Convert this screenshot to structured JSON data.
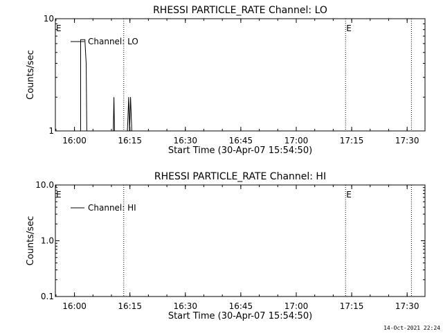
{
  "footer": {
    "timestamp": "14-Oct-2021 22:24"
  },
  "chart_data": [
    {
      "type": "line",
      "title": "RHESSI PARTICLE_RATE Channel: LO",
      "xlabel": "Start Time (30-Apr-07 15:54:50)",
      "ylabel": "Counts/sec",
      "y_scale": "log",
      "ylim": [
        1,
        10
      ],
      "y_ticks": [
        "10",
        "1"
      ],
      "x_ticks": [
        "16:00",
        "16:15",
        "16:30",
        "16:45",
        "17:00",
        "17:15",
        "17:30"
      ],
      "xlim": [
        "15:54:50",
        "17:34:50"
      ],
      "legend": "Channel: LO",
      "legend_position": "top-left",
      "markers": [
        {
          "label": "E",
          "time": "15:54:50",
          "style": "text"
        },
        {
          "label": "",
          "time": "16:13:20",
          "style": "dotted"
        },
        {
          "label": "E",
          "time": "17:13:20",
          "style": "dotted"
        },
        {
          "label": "",
          "time": "17:31:10",
          "style": "dotted"
        }
      ],
      "series": [
        {
          "name": "Channel: LO",
          "points": [
            [
              "16:01:40",
              1.0
            ],
            [
              "16:01:40",
              6.5
            ],
            [
              "16:02:50",
              6.5
            ],
            [
              "16:03:00",
              5.0
            ],
            [
              "16:03:10",
              4.0
            ],
            [
              "16:03:20",
              1.0
            ],
            [
              "16:10:30",
              1.0
            ],
            [
              "16:10:40",
              2.0
            ],
            [
              "16:10:50",
              1.0
            ],
            [
              "16:14:20",
              1.0
            ],
            [
              "16:14:40",
              2.0
            ],
            [
              "16:14:55",
              1.0
            ],
            [
              "16:15:10",
              2.0
            ],
            [
              "16:15:30",
              1.0
            ]
          ]
        }
      ]
    },
    {
      "type": "line",
      "title": "RHESSI PARTICLE_RATE Channel: HI",
      "xlabel": "Start Time (30-Apr-07 15:54:50)",
      "ylabel": "Counts/sec",
      "y_scale": "log",
      "ylim": [
        0.1,
        10
      ],
      "y_ticks": [
        "10.0",
        "1.0",
        "0.1"
      ],
      "x_ticks": [
        "16:00",
        "16:15",
        "16:30",
        "16:45",
        "17:00",
        "17:15",
        "17:30"
      ],
      "xlim": [
        "15:54:50",
        "17:34:50"
      ],
      "legend": "Channel: HI",
      "legend_position": "top-left",
      "markers": [
        {
          "label": "E",
          "time": "15:54:50",
          "style": "text"
        },
        {
          "label": "",
          "time": "16:13:20",
          "style": "dotted"
        },
        {
          "label": "E",
          "time": "17:13:20",
          "style": "dotted"
        },
        {
          "label": "",
          "time": "17:31:10",
          "style": "dotted"
        }
      ],
      "series": [
        {
          "name": "Channel: HI",
          "points": []
        }
      ]
    }
  ]
}
